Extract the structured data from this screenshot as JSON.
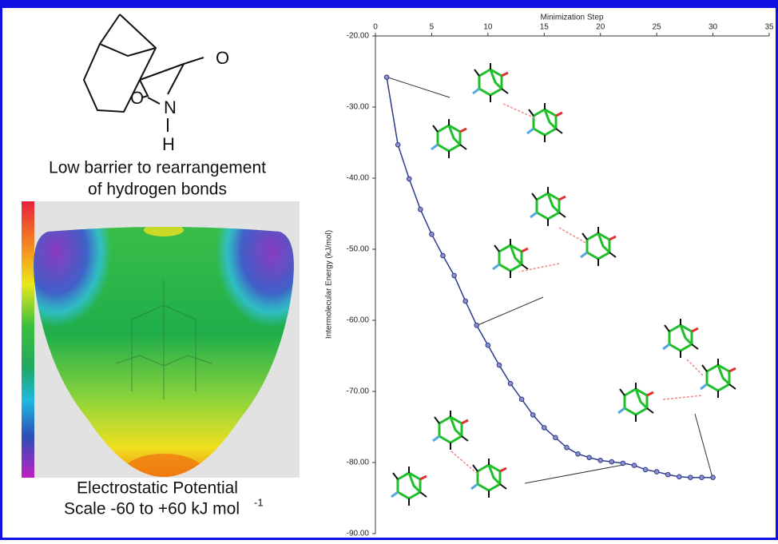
{
  "structure": {
    "atoms": [
      "O",
      "O",
      "N",
      "H"
    ]
  },
  "caption": {
    "lines": [
      "Low barrier to rearrangement",
      "of hydrogen bonds"
    ]
  },
  "esp_caption": {
    "line1": "Electrostatic Potential",
    "line2": "Scale -60 to +60 kJ mol",
    "superscript": "-1"
  },
  "chart_data": {
    "type": "line",
    "x_label": "Minimization Step",
    "y_label": "Intermolecular Energy (kJ/mol)",
    "x": [
      1,
      2,
      3,
      4,
      5,
      6,
      7,
      8,
      9,
      10,
      11,
      12,
      13,
      14,
      15,
      16,
      17,
      18,
      19,
      20,
      21,
      22,
      23,
      24,
      25,
      26,
      27,
      28,
      29,
      30
    ],
    "series": [
      {
        "color": "#2e3a8c",
        "values": [
          -25.8,
          -35.3,
          -40.1,
          -44.4,
          -47.9,
          -50.9,
          -53.7,
          -57.3,
          -60.7,
          -63.5,
          -66.3,
          -68.9,
          -71.1,
          -73.3,
          -75.1,
          -76.5,
          -77.9,
          -78.8,
          -79.3,
          -79.7,
          -79.9,
          -80.1,
          -80.4,
          -81.0,
          -81.3,
          -81.7,
          -82.0,
          -82.1,
          -82.1,
          -82.1
        ]
      }
    ],
    "xlim": [
      0,
      35
    ],
    "xticks": [
      0,
      5,
      10,
      15,
      20,
      25,
      30,
      35
    ],
    "ylim": [
      -90,
      -20
    ],
    "yticks": [
      {
        "value": -20,
        "label": "-20.00"
      },
      {
        "value": -30,
        "label": "-30.00"
      },
      {
        "value": -40,
        "label": "-40.00"
      },
      {
        "value": -50,
        "label": "-50.00"
      },
      {
        "value": -60,
        "label": "-60.00"
      },
      {
        "value": -70,
        "label": "-70.00"
      },
      {
        "value": -80,
        "label": "-80.00"
      },
      {
        "value": -90,
        "label": "-90.00"
      }
    ]
  }
}
